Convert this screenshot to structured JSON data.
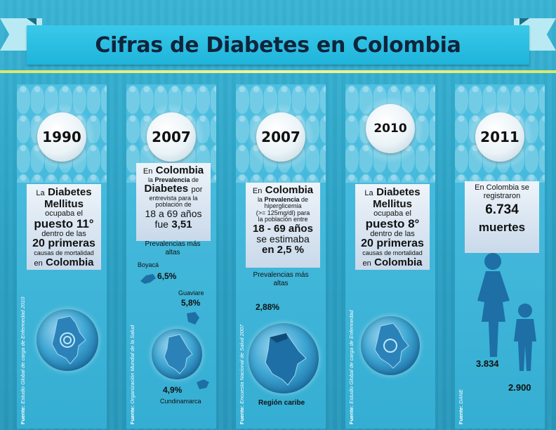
{
  "title": "Cifras de Diabetes en Colombia",
  "columns": [
    {
      "year": "1990",
      "l1": "La",
      "l2": "Diabetes",
      "l3": "Mellitus",
      "l4": "ocupaba el",
      "l5": "puesto 11°",
      "l6": "dentro de las",
      "l7": "20 primeras",
      "l8": "causas de mortalidad",
      "l9": "en",
      "l10": "Colombia",
      "source_label": "Fuente:",
      "source_text": "Estudio Global de carga de Enfermedad 2010"
    },
    {
      "year": "2007",
      "l1": "En",
      "l2": "Colombia",
      "l3": "la",
      "l4": "Prevalencia",
      "l5": "de",
      "l6": "Diabetes",
      "l7": "por",
      "l8": "entrevista para la",
      "l9": "población de",
      "l10": "18 a 69 años",
      "l11": "fue",
      "l12": "3,51",
      "prev_title": "Prevalencias más altas",
      "r1_name": "Boyacá",
      "r1_val": "6,5%",
      "r2_name": "Guaviare",
      "r2_val": "5,8%",
      "r3_name": "Cundinamarca",
      "r3_val": "4,9%",
      "source_label": "Fuente:",
      "source_text": "Organización Mundial de la Salud"
    },
    {
      "year": "2007",
      "l1": "En",
      "l2": "Colombia",
      "l3": "la",
      "l4": "Prevalencia",
      "l5": "de",
      "l6": "hiperglicemia",
      "l7": "(>= 125mg/dl) para",
      "l8": "la población entre",
      "l9": "18 - 69 años",
      "l10": "se estimaba",
      "l11": "en 2,5 %",
      "prev_title": "Prevalencias más altas",
      "r1_val": "2,88%",
      "r1_name": "Región caribe",
      "source_label": "Fuente:",
      "source_text": "Encuesta Nacional de Salud 2007"
    },
    {
      "year": "2010",
      "l1": "La",
      "l2": "Diabetes",
      "l3": "Mellitus",
      "l4": "ocupaba el",
      "l5": "puesto 8°",
      "l6": "dentro de las",
      "l7": "20 primeras",
      "l8": "causas de mortalidad",
      "l9": "en",
      "l10": "Colombia",
      "source_label": "Fuente:",
      "source_text": "Estudio Global de carga de Enfermedad"
    },
    {
      "year": "2011",
      "l1": "En Colombia se",
      "l2": "registraron",
      "l3": "6.734",
      "l4": "muertes",
      "women": "3.834",
      "men": "2.900",
      "source_label": "Fuente:",
      "source_text": "DANE"
    }
  ],
  "colors": {
    "background": "#2fa6c8",
    "banner": "#1fb4db",
    "ribbon_tail": "#b9eaf3",
    "yellow_line": "#e8f07e",
    "figure": "#1d6fa6"
  }
}
